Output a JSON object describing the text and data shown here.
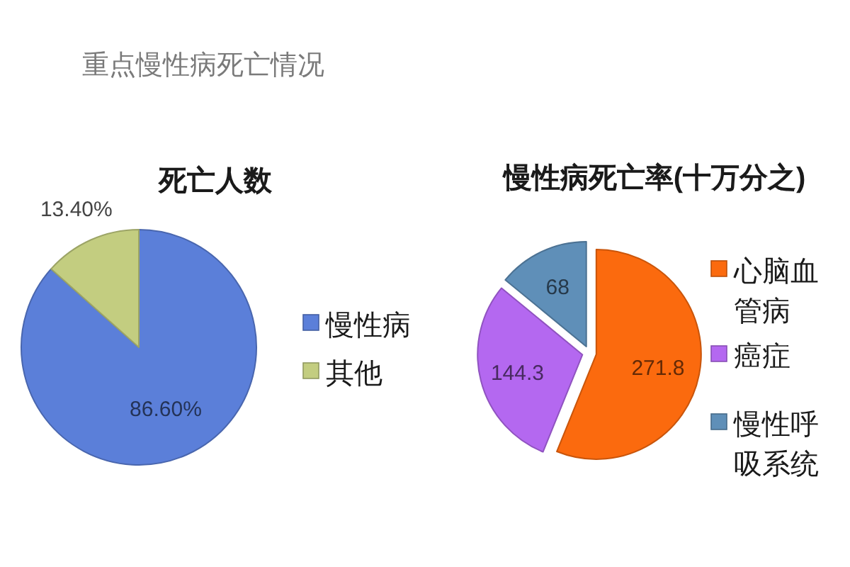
{
  "chart_data": [
    {
      "type": "pie",
      "title": "重点慢性病死亡情况",
      "subtitle": "死亡人数",
      "categories": [
        "慢性病",
        "其他"
      ],
      "values": [
        86.6,
        13.4
      ],
      "colors": [
        "#5b7fd9",
        "#c3cd80"
      ],
      "value_labels": [
        "86.60%",
        "13.40%"
      ],
      "legend": "right"
    },
    {
      "type": "pie",
      "title": "慢性病死亡率(十万分之)",
      "categories": [
        "心脑血管病",
        "癌症",
        "慢性呼吸系统"
      ],
      "values": [
        271.8,
        144.3,
        68
      ],
      "colors": [
        "#fb6a0e",
        "#b468f0",
        "#5f8fb8"
      ],
      "data_labels": true,
      "legend": "right"
    }
  ]
}
